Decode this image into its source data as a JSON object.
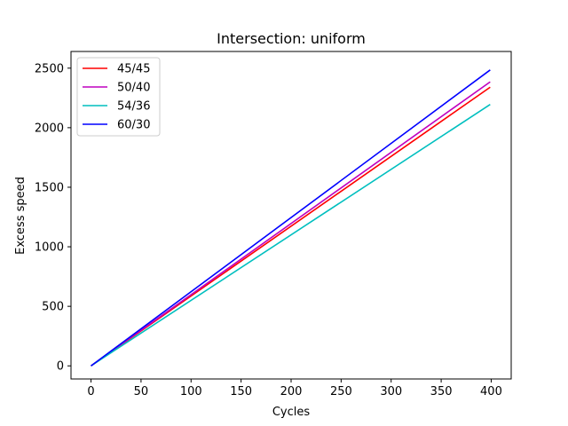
{
  "chart_data": {
    "type": "line",
    "title": "Intersection: uniform",
    "xlabel": "Cycles",
    "ylabel": "Excess speed",
    "xlim": [
      -20,
      420
    ],
    "ylim": [
      -110,
      2640
    ],
    "xticks": [
      0,
      50,
      100,
      150,
      200,
      250,
      300,
      350,
      400
    ],
    "yticks": [
      0,
      500,
      1000,
      1500,
      2000,
      2500
    ],
    "grid": false,
    "legend_position": "top-left",
    "series": [
      {
        "name": "45/45",
        "color": "#ff0000",
        "x": [
          0,
          399
        ],
        "y": [
          0,
          2340
        ]
      },
      {
        "name": "50/40",
        "color": "#bf00bf",
        "x": [
          0,
          399
        ],
        "y": [
          0,
          2385
        ]
      },
      {
        "name": "54/36",
        "color": "#00bfbf",
        "x": [
          0,
          399
        ],
        "y": [
          0,
          2195
        ]
      },
      {
        "name": "60/30",
        "color": "#0000ff",
        "x": [
          0,
          399
        ],
        "y": [
          0,
          2485
        ]
      }
    ]
  }
}
